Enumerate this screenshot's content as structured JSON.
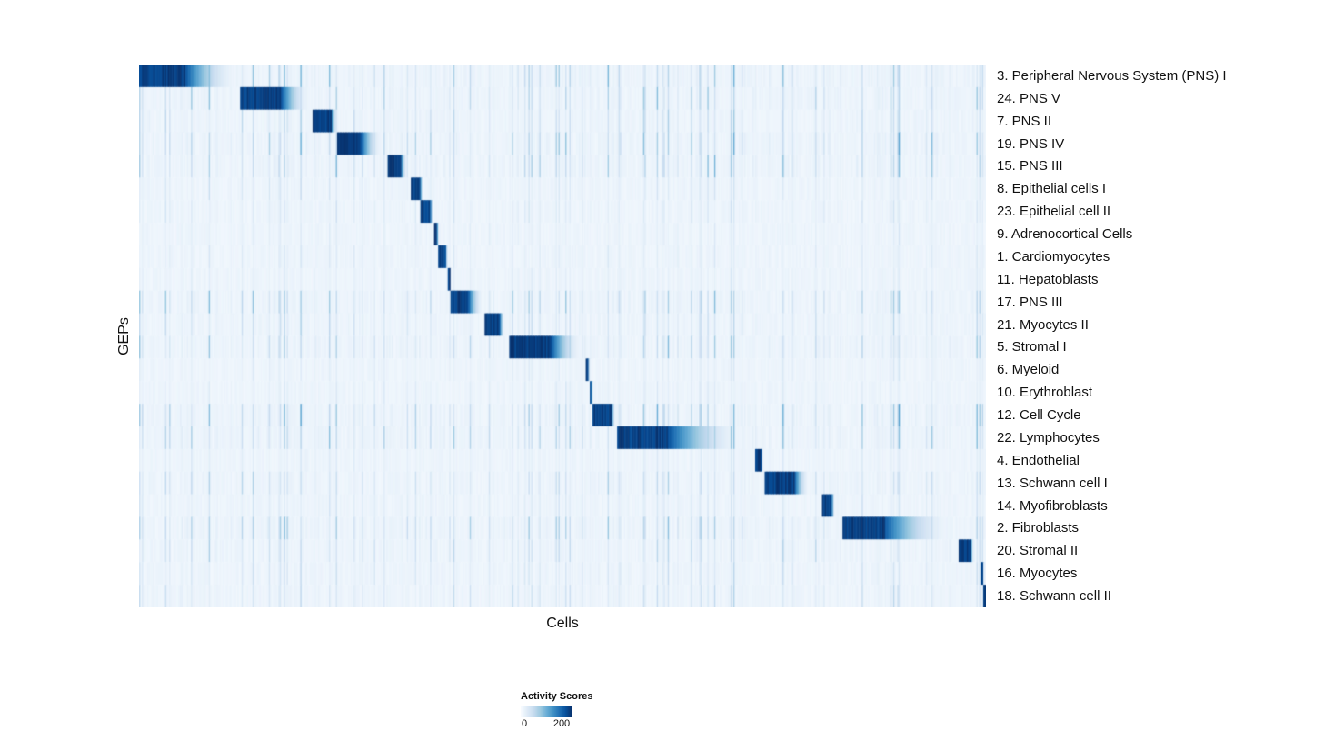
{
  "chart_data": {
    "type": "heatmap",
    "title": "",
    "xlabel": "Cells",
    "ylabel": "GEPs",
    "legend": {
      "title": "Activity Scores",
      "min": 0,
      "max": 200
    },
    "value_range": [
      0,
      200
    ],
    "colormap": [
      "#f7fbff",
      "#deebf7",
      "#c6dbef",
      "#9ecae1",
      "#6baed6",
      "#4292c6",
      "#2171b5",
      "#08519c",
      "#08306b"
    ],
    "n_cols": 620,
    "rows": [
      {
        "label": "3. Peripheral Nervous System (PNS) I",
        "block_start": 0.0,
        "block_width": 0.055,
        "fade": 0.065,
        "noise": 0.5
      },
      {
        "label": "24. PNS V",
        "block_start": 0.12,
        "block_width": 0.048,
        "fade": 0.035,
        "noise": 0.45
      },
      {
        "label": "7. PNS II",
        "block_start": 0.205,
        "block_width": 0.022,
        "fade": 0.008,
        "noise": 0.35
      },
      {
        "label": "19. PNS IV",
        "block_start": 0.234,
        "block_width": 0.028,
        "fade": 0.026,
        "noise": 0.55
      },
      {
        "label": "15. PNS III",
        "block_start": 0.293,
        "block_width": 0.016,
        "fade": 0.008,
        "noise": 0.5
      },
      {
        "label": "8. Epithelial cells I",
        "block_start": 0.321,
        "block_width": 0.011,
        "fade": 0.004,
        "noise": 0.2
      },
      {
        "label": "23. Epithelial cell II",
        "block_start": 0.333,
        "block_width": 0.011,
        "fade": 0.004,
        "noise": 0.2
      },
      {
        "label": "9. Adrenocortical Cells",
        "block_start": 0.348,
        "block_width": 0.004,
        "fade": 0.002,
        "noise": 0.12
      },
      {
        "label": "1. Cardiomyocytes",
        "block_start": 0.354,
        "block_width": 0.008,
        "fade": 0.003,
        "noise": 0.15
      },
      {
        "label": "11. Hepatoblasts",
        "block_start": 0.364,
        "block_width": 0.003,
        "fade": 0.002,
        "noise": 0.12
      },
      {
        "label": "17. PNS III",
        "block_start": 0.367,
        "block_width": 0.022,
        "fade": 0.018,
        "noise": 0.45
      },
      {
        "label": "21. Myocytes II",
        "block_start": 0.408,
        "block_width": 0.018,
        "fade": 0.006,
        "noise": 0.3
      },
      {
        "label": "5. Stromal I",
        "block_start": 0.437,
        "block_width": 0.05,
        "fade": 0.038,
        "noise": 0.45
      },
      {
        "label": "6. Myeloid",
        "block_start": 0.528,
        "block_width": 0.003,
        "fade": 0.001,
        "noise": 0.12
      },
      {
        "label": "10. Erythroblast",
        "block_start": 0.5315,
        "block_width": 0.003,
        "fade": 0.001,
        "noise": 0.15
      },
      {
        "label": "12. Cell Cycle",
        "block_start": 0.535,
        "block_width": 0.023,
        "fade": 0.005,
        "noise": 0.55
      },
      {
        "label": "22. Lymphocytes",
        "block_start": 0.564,
        "block_width": 0.062,
        "fade": 0.092,
        "noise": 0.5
      },
      {
        "label": "4. Endothelial",
        "block_start": 0.727,
        "block_width": 0.008,
        "fade": 0.002,
        "noise": 0.15
      },
      {
        "label": "13. Schwann cell I",
        "block_start": 0.738,
        "block_width": 0.036,
        "fade": 0.018,
        "noise": 0.35
      },
      {
        "label": "14. Myofibroblasts",
        "block_start": 0.806,
        "block_width": 0.012,
        "fade": 0.004,
        "noise": 0.2
      },
      {
        "label": "2. Fibroblasts",
        "block_start": 0.83,
        "block_width": 0.05,
        "fade": 0.082,
        "noise": 0.5
      },
      {
        "label": "20. Stromal II",
        "block_start": 0.968,
        "block_width": 0.014,
        "fade": 0.004,
        "noise": 0.35
      },
      {
        "label": "16. Myocytes",
        "block_start": 0.993,
        "block_width": 0.004,
        "fade": 0.001,
        "noise": 0.25
      },
      {
        "label": "18. Schwann cell II",
        "block_start": 0.997,
        "block_width": 0.003,
        "fade": 0.0,
        "noise": 0.3
      }
    ]
  }
}
